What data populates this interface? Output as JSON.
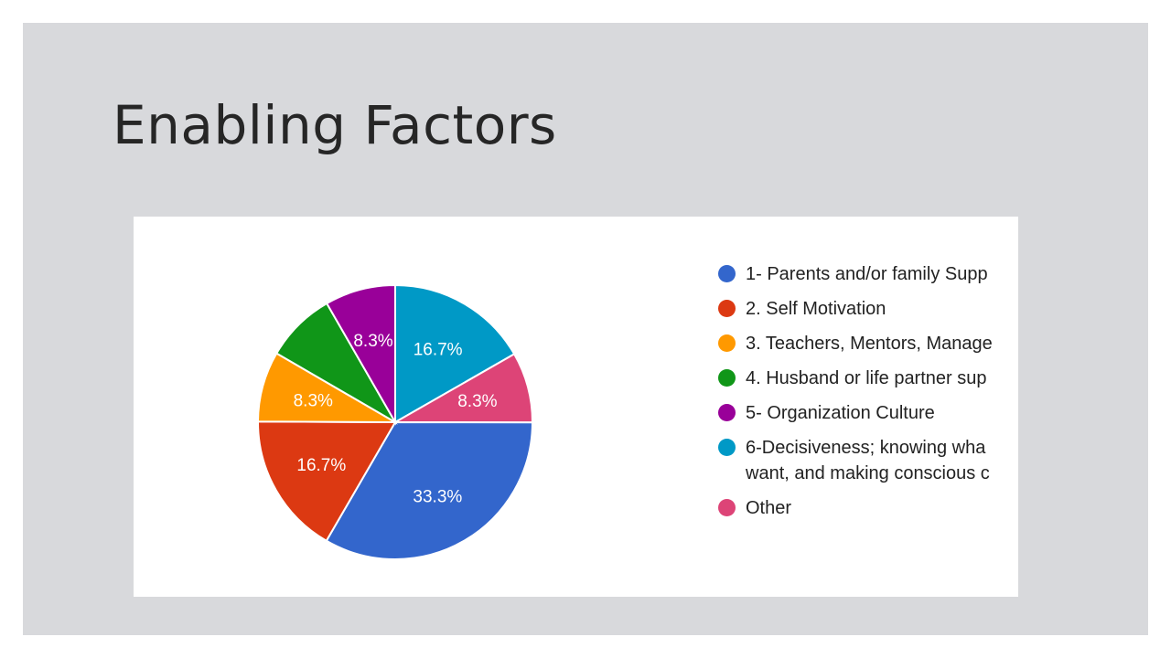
{
  "slide": {
    "title": "Enabling Factors"
  },
  "chart_data": {
    "type": "pie",
    "title": "",
    "slices": [
      {
        "name": "1- Parents and/or family Supp",
        "value": 33.3,
        "label": "33.3%",
        "color": "#3366cc"
      },
      {
        "name": "2. Self Motivation",
        "value": 16.7,
        "label": "16.7%",
        "color": "#dc3912"
      },
      {
        "name": "3. Teachers, Mentors, Manage",
        "value": 8.3,
        "label": "8.3%",
        "color": "#ff9900"
      },
      {
        "name": "4. Husband or life partner sup",
        "value": 8.3,
        "label": "",
        "color": "#109618"
      },
      {
        "name": "5- Organization Culture",
        "value": 8.3,
        "label": "8.3%",
        "color": "#990099"
      },
      {
        "name": "6-Decisiveness; knowing wha want, and making conscious c",
        "value": 16.7,
        "label": "16.7%",
        "color": "#0099c6"
      },
      {
        "name": "Other",
        "value": 8.3,
        "label": "8.3%",
        "color": "#dd4477"
      }
    ],
    "legend_position": "right"
  }
}
